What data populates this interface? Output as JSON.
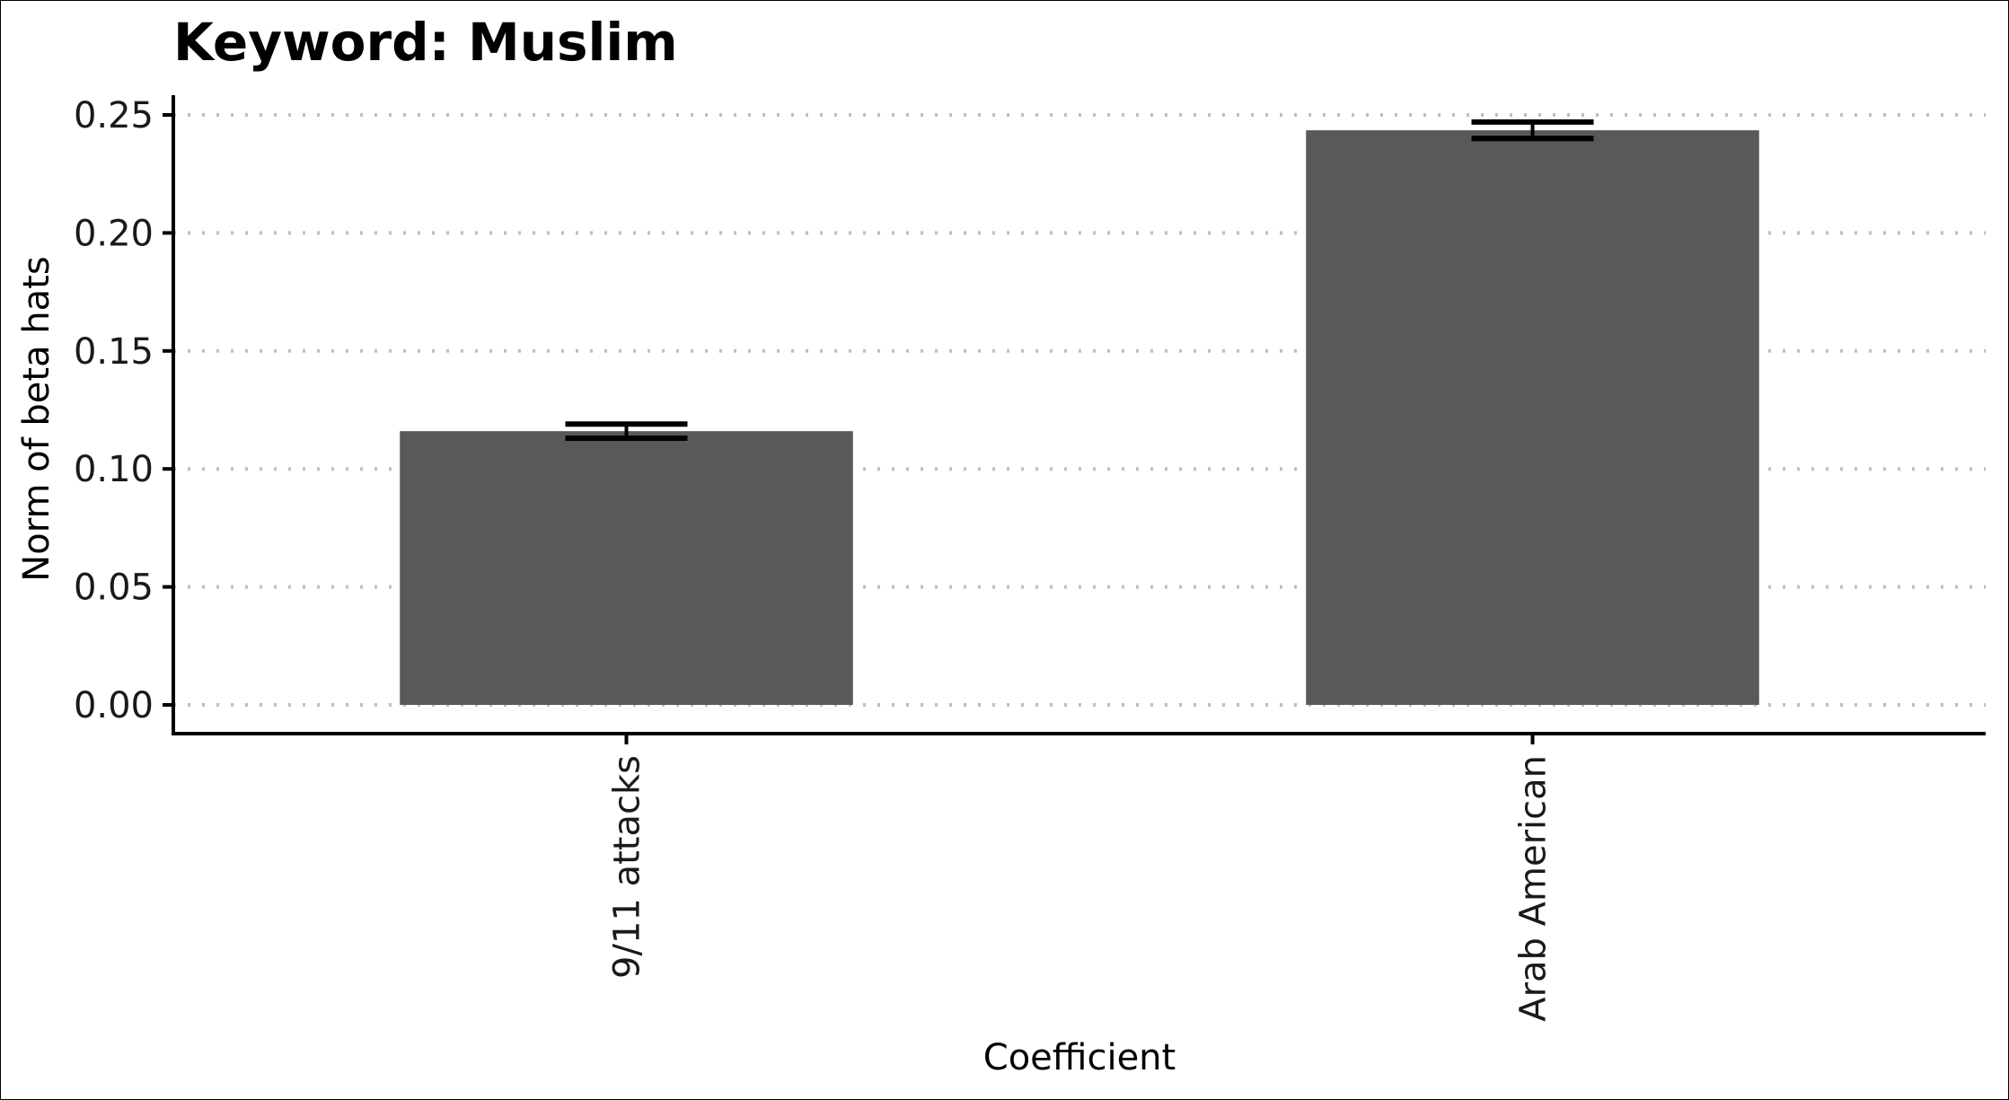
{
  "chart_data": {
    "type": "bar",
    "title": "Keyword: Muslim",
    "xlabel": "Coefficient",
    "ylabel": "Norm of beta hats",
    "categories": [
      "9/11 attacks",
      "Arab American"
    ],
    "values": [
      0.116,
      0.2435
    ],
    "error_bars": [
      {
        "low": 0.113,
        "high": 0.119
      },
      {
        "low": 0.24,
        "high": 0.247
      }
    ],
    "ylim": [
      0,
      0.25
    ],
    "yticks": [
      "0.00",
      "0.05",
      "0.10",
      "0.15",
      "0.20",
      "0.25"
    ],
    "grid": "horizontal dotted",
    "colors": {
      "bar": "#595959",
      "error_bar": "#000000",
      "grid": "#bfbfbf",
      "axis": "#000000"
    }
  }
}
